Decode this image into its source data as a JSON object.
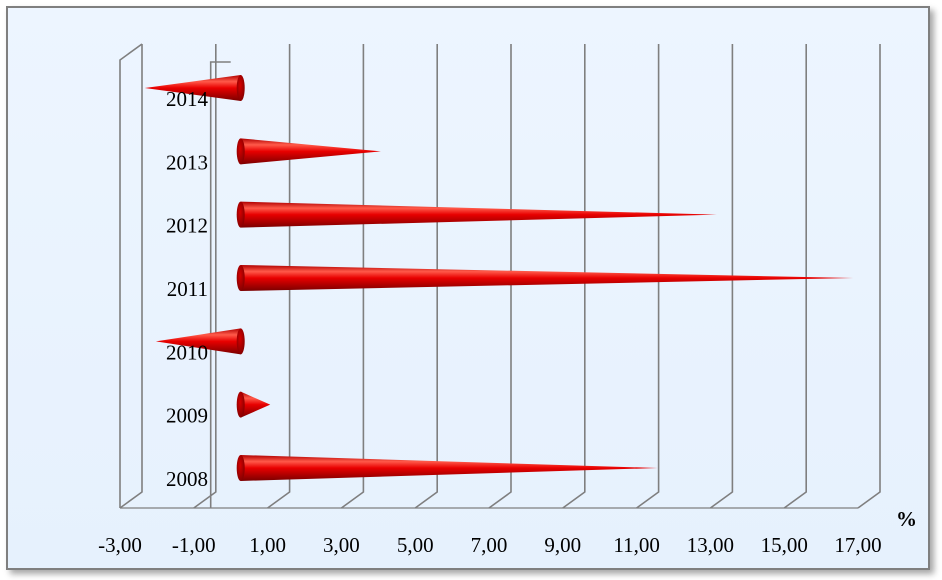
{
  "chart_data": {
    "type": "bar",
    "orientation": "horizontal",
    "mark_shape": "cone",
    "categories": [
      "2008",
      "2009",
      "2010",
      "2011",
      "2012",
      "2013",
      "2014"
    ],
    "values": [
      11.3,
      0.8,
      -2.3,
      16.6,
      12.9,
      3.8,
      -2.6
    ],
    "series_color": "#e60000",
    "x_unit": "%",
    "xlim": [
      -3,
      17
    ],
    "xticks": [
      "-3,00",
      "-1,00",
      "1,00",
      "3,00",
      "5,00",
      "7,00",
      "9,00",
      "11,00",
      "13,00",
      "15,00",
      "17,00"
    ],
    "grid": true,
    "title": "",
    "xlabel": "",
    "ylabel": ""
  }
}
